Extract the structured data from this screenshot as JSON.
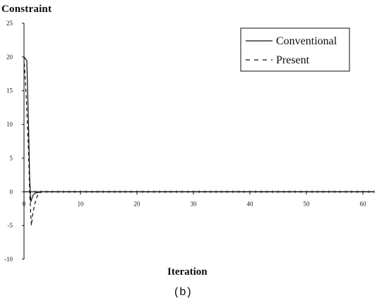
{
  "caption": "(b)",
  "chart_data": {
    "type": "line",
    "title": "",
    "ylabel": "Constraint",
    "xlabel": "Iteration",
    "xlim": [
      0,
      62
    ],
    "ylim": [
      -10,
      25
    ],
    "xticks": [
      0,
      10,
      20,
      30,
      40,
      50,
      60
    ],
    "yticks": [
      -10,
      -5,
      0,
      5,
      10,
      15,
      20,
      25
    ],
    "grid": false,
    "legend_position": "top-right",
    "series": [
      {
        "name": "Conventional",
        "style": "solid",
        "x": [
          0,
          0.5,
          0.8,
          1.0,
          1.2,
          1.6,
          2,
          3,
          4,
          5,
          6,
          8,
          10,
          15,
          20,
          25,
          30,
          35,
          40,
          45,
          50,
          55,
          60,
          62
        ],
        "y": [
          20,
          19.5,
          10,
          2,
          -1.5,
          -0.5,
          -0.2,
          0,
          0,
          0,
          0,
          0,
          0,
          0,
          0,
          0,
          0,
          0,
          0,
          0,
          0,
          0,
          0,
          0
        ]
      },
      {
        "name": "Present",
        "style": "dashed",
        "x": [
          0,
          0.4,
          0.8,
          1.0,
          1.3,
          1.6,
          2,
          2.5,
          3,
          4,
          5,
          6,
          8,
          10,
          15,
          20,
          25,
          30,
          35,
          40,
          45,
          50,
          55,
          60,
          62
        ],
        "y": [
          20,
          14,
          6,
          0,
          -5,
          -3,
          -1.5,
          -0.3,
          0,
          0,
          0,
          0,
          0,
          0,
          0,
          0,
          0,
          0,
          0,
          0,
          0,
          0,
          0,
          0,
          0
        ]
      }
    ]
  }
}
